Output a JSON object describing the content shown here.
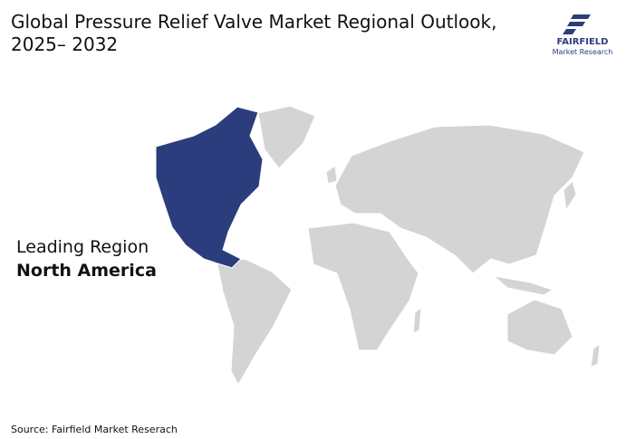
{
  "header": {
    "title_lines": [
      "Global Pressure Relief Valve Market Regional Outlook,",
      "2025– 2032"
    ]
  },
  "logo": {
    "name": "FAIRFIELD",
    "tagline": "Market Research"
  },
  "callout": {
    "label": "Leading Region",
    "region": "North America"
  },
  "footer": {
    "source": "Source: Fairfield Market Reserach"
  }
}
